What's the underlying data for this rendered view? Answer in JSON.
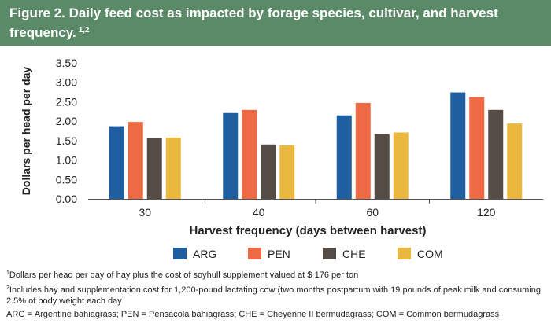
{
  "figure": {
    "title": "Figure 2. Daily feed cost as impacted by forage species, cultivar, and harvest frequency.",
    "title_superscript": "1,2"
  },
  "chart_data": {
    "type": "bar",
    "categories": [
      "30",
      "40",
      "60",
      "120"
    ],
    "series": [
      {
        "name": "ARG",
        "color": "#1f5fa0",
        "values": [
          1.87,
          2.21,
          2.15,
          2.74
        ]
      },
      {
        "name": "PEN",
        "color": "#ee6a45",
        "values": [
          1.98,
          2.29,
          2.47,
          2.62
        ]
      },
      {
        "name": "CHE",
        "color": "#554d45",
        "values": [
          1.56,
          1.4,
          1.67,
          2.29
        ]
      },
      {
        "name": "COM",
        "color": "#ebb83f",
        "values": [
          1.58,
          1.38,
          1.71,
          1.94
        ]
      }
    ],
    "xlabel": "Harvest frequency (days between harvest)",
    "ylabel": "Dollars per head per day",
    "ylim": [
      0,
      3.5
    ],
    "yticks": [
      "0.00",
      "0.50",
      "1.00",
      "1.50",
      "2.00",
      "2.50",
      "3.00",
      "3.50"
    ],
    "grid": false,
    "legend_position": "bottom"
  },
  "footnotes": [
    {
      "marker": "1",
      "text": "Dollars per head per day of hay plus the cost of soyhull supplement valued at $ 176 per ton"
    },
    {
      "marker": "2",
      "text": "Includes hay and supplementation cost for 1,200-pound lactating cow (two months postpartum with 19 pounds of peak milk and consuming 2.5% of body weight each day"
    },
    {
      "marker": "",
      "text": "ARG = Argentine bahiagrass; PEN = Pensacola bahiagrass; CHE = Cheyenne II bermudagrass; COM = Common bermudagrass"
    }
  ]
}
